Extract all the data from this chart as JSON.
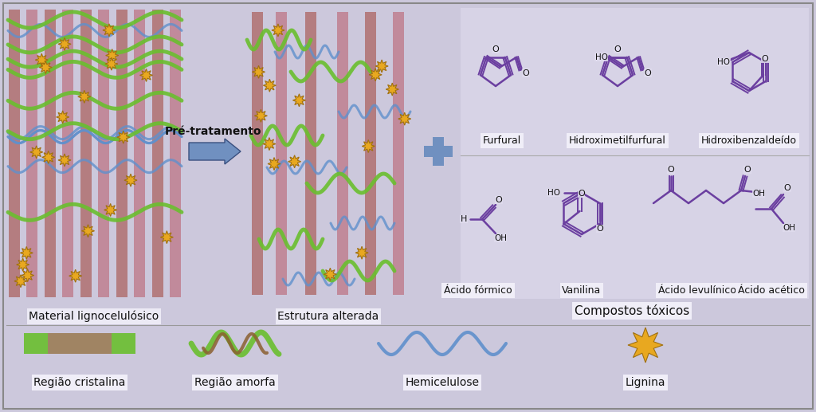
{
  "bg_color": "#ccc8dc",
  "border_color": "#888888",
  "title_material": "Material lignocelulósico",
  "title_altered": "Estrutura alterada",
  "title_toxic": "Compostos tóxicos",
  "label_pretratamento": "Pré-tratamento",
  "label_furfural": "Furfural",
  "label_hmf": "Hidroximetilfurfural",
  "label_hydroxybenz": "Hidroxibenzaldeído",
  "label_acido_formico": "Ácido fórmico",
  "label_vanilina": "Vanilina",
  "label_acido_lev": "Ácido levulínico",
  "label_acido_acetico": "Ácido acético",
  "label_cristalina": "Região cristalina",
  "label_amorfa": "Região amorfa",
  "label_hemicelulose": "Hemicelulose",
  "label_lignina": "Lignina",
  "purple_color": "#6b3fa0",
  "green_color": "#6abf2e",
  "blue_color": "#6090cc",
  "pink_color": "#c08090",
  "salmon_color": "#b07070",
  "gold_color": "#e8a820",
  "gold_edge": "#a07010",
  "brown_color": "#8b6030",
  "arrow_color": "#7090c0",
  "white_box_color": "#f0eef8",
  "text_color": "#111111",
  "chem_bg": "#e0dcee"
}
